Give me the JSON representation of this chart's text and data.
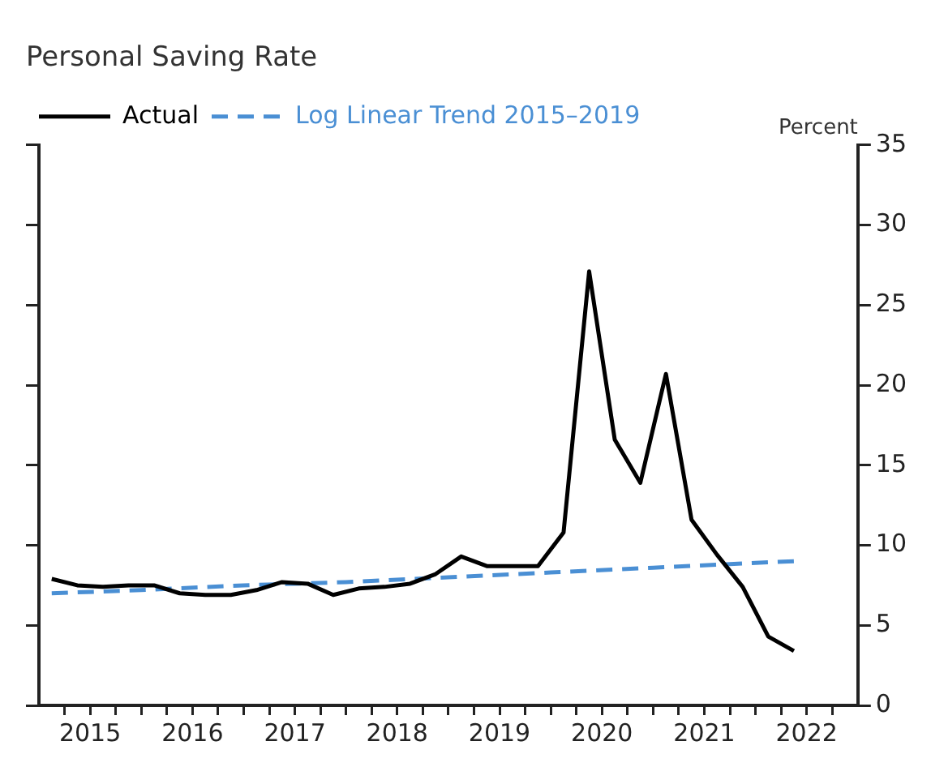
{
  "chart_data": {
    "type": "line",
    "title": "Personal Saving Rate",
    "ylabel": "Percent",
    "xlim": [
      2015,
      2023
    ],
    "xticks": [
      {
        "value": 2015.25,
        "label": null
      },
      {
        "value": 2015.5,
        "label": "2015"
      },
      {
        "value": 2015.75,
        "label": null
      },
      {
        "value": 2016,
        "label": null
      },
      {
        "value": 2016.25,
        "label": null
      },
      {
        "value": 2016.5,
        "label": "2016"
      },
      {
        "value": 2016.75,
        "label": null
      },
      {
        "value": 2017,
        "label": null
      },
      {
        "value": 2017.25,
        "label": null
      },
      {
        "value": 2017.5,
        "label": "2017"
      },
      {
        "value": 2017.75,
        "label": null
      },
      {
        "value": 2018,
        "label": null
      },
      {
        "value": 2018.25,
        "label": null
      },
      {
        "value": 2018.5,
        "label": "2018"
      },
      {
        "value": 2018.75,
        "label": null
      },
      {
        "value": 2019,
        "label": null
      },
      {
        "value": 2019.25,
        "label": null
      },
      {
        "value": 2019.5,
        "label": "2019"
      },
      {
        "value": 2019.75,
        "label": null
      },
      {
        "value": 2020,
        "label": null
      },
      {
        "value": 2020.25,
        "label": null
      },
      {
        "value": 2020.5,
        "label": "2020"
      },
      {
        "value": 2020.75,
        "label": null
      },
      {
        "value": 2021,
        "label": null
      },
      {
        "value": 2021.25,
        "label": null
      },
      {
        "value": 2021.5,
        "label": "2021"
      },
      {
        "value": 2021.75,
        "label": null
      },
      {
        "value": 2022,
        "label": null
      },
      {
        "value": 2022.25,
        "label": null
      },
      {
        "value": 2022.5,
        "label": "2022"
      },
      {
        "value": 2022.75,
        "label": null
      }
    ],
    "ylim": [
      0,
      35
    ],
    "yticks": [
      0,
      5,
      10,
      15,
      20,
      25,
      30,
      35
    ],
    "grid": false,
    "legend": "top left",
    "marker": "none",
    "series": [
      {
        "name": "Actual",
        "color": "#000000",
        "line_style": "solid",
        "x": [
          2015.125,
          2015.375,
          2015.625,
          2015.875,
          2016.125,
          2016.375,
          2016.625,
          2016.875,
          2017.125,
          2017.375,
          2017.625,
          2017.875,
          2018.125,
          2018.375,
          2018.625,
          2018.875,
          2019.125,
          2019.375,
          2019.625,
          2019.875,
          2020.125,
          2020.375,
          2020.625,
          2020.875,
          2021.125,
          2021.375,
          2021.625,
          2021.875,
          2022.125,
          2022.375
        ],
        "values": [
          7.9,
          7.5,
          7.4,
          7.5,
          7.5,
          7.0,
          6.9,
          6.9,
          7.2,
          7.7,
          7.6,
          6.9,
          7.3,
          7.4,
          7.6,
          8.2,
          9.3,
          8.7,
          8.7,
          8.7,
          10.8,
          27.1,
          16.6,
          13.9,
          20.7,
          11.6,
          9.4,
          7.4,
          4.3,
          3.4
        ]
      },
      {
        "name": "Log Linear Trend 2015–2019",
        "color": "#4a8fd4",
        "line_style": "dashed",
        "x": [
          2015.125,
          2016,
          2017,
          2018,
          2019,
          2020,
          2021,
          2022,
          2022.375
        ],
        "values": [
          7.0,
          7.2,
          7.5,
          7.7,
          8.0,
          8.3,
          8.6,
          8.9,
          9.0
        ]
      }
    ]
  }
}
